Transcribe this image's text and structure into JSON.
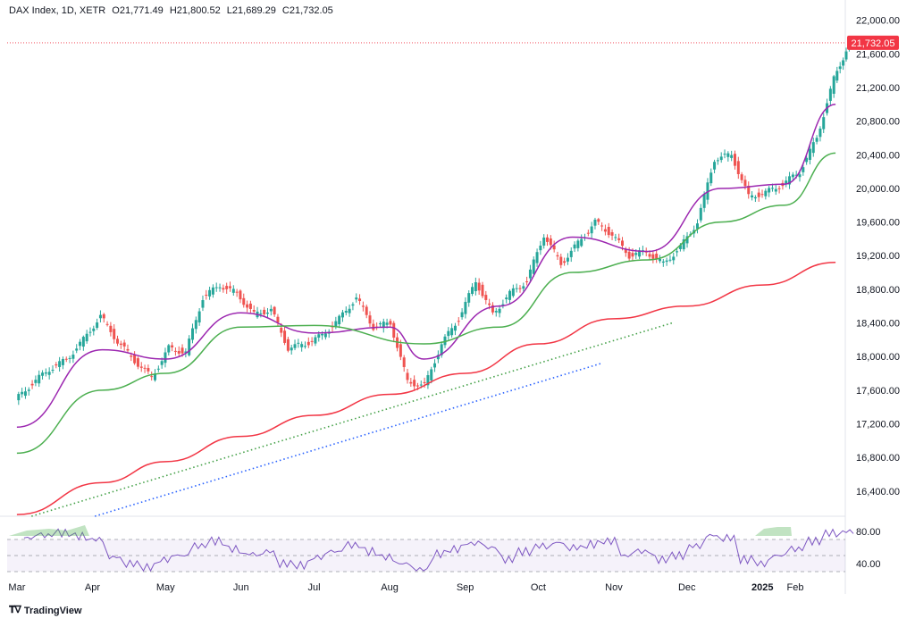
{
  "header": {
    "symbol": "DAX Index, 1D, XETR",
    "open": "O21,771.49",
    "high": "H21,800.52",
    "low": "L21,689.29",
    "close": "C21,732.05"
  },
  "brand": {
    "name": "TradingView",
    "logo": "tradingview-logo"
  },
  "colors": {
    "up": "#26a69a",
    "down": "#ef5350",
    "sma20": "#9c27b0",
    "sma50": "#4caf50",
    "sma200": "#f23645",
    "trend_green": "#43a047",
    "trend_blue": "#2962ff",
    "rsi_line": "#7e57c2",
    "rsi_fill": "rgba(126,87,194,0.08)",
    "price_line": "#f23645"
  },
  "chart_data": [
    {
      "type": "candlestick",
      "symbol": "DAX Index",
      "interval": "1D",
      "exchange": "XETR",
      "last_price_label": "21,732.05",
      "yticks": [
        "22,000.00",
        "21,600.00",
        "21,200.00",
        "20,800.00",
        "20,400.00",
        "20,000.00",
        "19,600.00",
        "19,200.00",
        "18,800.00",
        "18,400.00",
        "18,000.00",
        "17,600.00",
        "17,200.00",
        "16,800.00",
        "16,400.00"
      ],
      "ylim": [
        16100,
        22050
      ],
      "xticks": [
        "Mar",
        "Apr",
        "May",
        "Jun",
        "Jul",
        "Aug",
        "Sep",
        "Oct",
        "Nov",
        "Dec",
        "2025",
        "Feb"
      ],
      "ohlc_weekly_approx": [
        [
          "2024-03-01",
          17480,
          17720,
          17420,
          17680
        ],
        [
          "2024-03-08",
          17680,
          17900,
          17640,
          17850
        ],
        [
          "2024-03-15",
          17850,
          18000,
          17800,
          17960
        ],
        [
          "2024-03-22",
          17960,
          18250,
          17920,
          18200
        ],
        [
          "2024-03-29",
          18200,
          18550,
          18150,
          18480
        ],
        [
          "2024-04-05",
          18480,
          18520,
          18100,
          18180
        ],
        [
          "2024-04-12",
          18180,
          18200,
          17900,
          17950
        ],
        [
          "2024-04-19",
          17950,
          18000,
          17650,
          17750
        ],
        [
          "2024-04-26",
          17750,
          18150,
          17700,
          18100
        ],
        [
          "2024-05-03",
          18100,
          18200,
          17950,
          18050
        ],
        [
          "2024-05-10",
          18050,
          18750,
          18000,
          18700
        ],
        [
          "2024-05-17",
          18700,
          18900,
          18650,
          18850
        ],
        [
          "2024-05-24",
          18850,
          18900,
          18650,
          18750
        ],
        [
          "2024-05-31",
          18750,
          18800,
          18450,
          18500
        ],
        [
          "2024-06-07",
          18500,
          18700,
          18450,
          18560
        ],
        [
          "2024-06-14",
          18560,
          18600,
          18050,
          18100
        ],
        [
          "2024-06-21",
          18100,
          18250,
          17950,
          18150
        ],
        [
          "2024-06-28",
          18150,
          18300,
          18100,
          18250
        ],
        [
          "2024-07-05",
          18250,
          18500,
          18200,
          18450
        ],
        [
          "2024-07-12",
          18450,
          18800,
          18400,
          18700
        ],
        [
          "2024-07-19",
          18700,
          18750,
          18300,
          18350
        ],
        [
          "2024-07-26",
          18350,
          18450,
          18200,
          18400
        ],
        [
          "2024-08-02",
          18400,
          18450,
          17600,
          17700
        ],
        [
          "2024-08-09",
          17700,
          17800,
          17000,
          17650
        ],
        [
          "2024-08-16",
          17650,
          18200,
          17600,
          18150
        ],
        [
          "2024-08-23",
          18150,
          18500,
          18100,
          18450
        ],
        [
          "2024-08-30",
          18450,
          18950,
          18400,
          18900
        ],
        [
          "2024-09-06",
          18900,
          18950,
          18450,
          18500
        ],
        [
          "2024-09-13",
          18500,
          18800,
          18200,
          18750
        ],
        [
          "2024-09-20",
          18750,
          19050,
          18700,
          18900
        ],
        [
          "2024-09-27",
          18900,
          19500,
          18850,
          19450
        ],
        [
          "2024-10-04",
          19450,
          19500,
          19050,
          19100
        ],
        [
          "2024-10-11",
          19100,
          19400,
          19050,
          19350
        ],
        [
          "2024-10-18",
          19350,
          19650,
          19300,
          19600
        ],
        [
          "2024-10-25",
          19600,
          19650,
          19350,
          19450
        ],
        [
          "2024-11-01",
          19450,
          19500,
          19050,
          19200
        ],
        [
          "2024-11-08",
          19200,
          19400,
          19000,
          19250
        ],
        [
          "2024-11-15",
          19250,
          19300,
          18850,
          19100
        ],
        [
          "2024-11-22",
          19100,
          19350,
          18800,
          19300
        ],
        [
          "2024-11-29",
          19300,
          19650,
          19250,
          19600
        ],
        [
          "2024-12-06",
          19600,
          20400,
          19550,
          20350
        ],
        [
          "2024-12-13",
          20350,
          20500,
          20250,
          20400
        ],
        [
          "2024-12-20",
          20400,
          20450,
          19800,
          19900
        ],
        [
          "2024-12-27",
          19900,
          20050,
          19700,
          19950
        ],
        [
          "2025-01-03",
          19950,
          20100,
          19800,
          20050
        ],
        [
          "2025-01-10",
          20050,
          20300,
          19950,
          20200
        ],
        [
          "2025-01-17",
          20200,
          20650,
          20150,
          20600
        ],
        [
          "2025-01-24",
          20600,
          21350,
          20550,
          21300
        ],
        [
          "2025-01-31",
          21300,
          21800,
          21250,
          21732
        ]
      ],
      "moving_averages": [
        {
          "name": "",
          "color_key": "sma20",
          "points": [
            [
              "2024-03-01",
              17160
            ],
            [
              "2024-04-05",
              18080
            ],
            [
              "2024-05-01",
              17970
            ],
            [
              "2024-06-01",
              18520
            ],
            [
              "2024-07-01",
              18280
            ],
            [
              "2024-08-01",
              18350
            ],
            [
              "2024-08-15",
              17970
            ],
            [
              "2024-09-15",
              18600
            ],
            [
              "2024-10-15",
              19420
            ],
            [
              "2024-11-15",
              19250
            ],
            [
              "2024-12-15",
              20000
            ],
            [
              "2025-01-10",
              20050
            ],
            [
              "2025-01-31",
              21000
            ]
          ]
        },
        {
          "name": "",
          "color_key": "sma50",
          "points": [
            [
              "2024-03-01",
              16850
            ],
            [
              "2024-04-05",
              17600
            ],
            [
              "2024-05-01",
              17800
            ],
            [
              "2024-06-01",
              18350
            ],
            [
              "2024-07-01",
              18370
            ],
            [
              "2024-08-15",
              18150
            ],
            [
              "2024-09-15",
              18350
            ],
            [
              "2024-10-15",
              19000
            ],
            [
              "2024-11-15",
              19150
            ],
            [
              "2024-12-15",
              19600
            ],
            [
              "2025-01-10",
              19800
            ],
            [
              "2025-01-31",
              20420
            ]
          ]
        },
        {
          "name": "",
          "color_key": "sma200",
          "points": [
            [
              "2024-03-01",
              16120
            ],
            [
              "2024-04-05",
              16500
            ],
            [
              "2024-05-01",
              16750
            ],
            [
              "2024-06-01",
              17050
            ],
            [
              "2024-07-01",
              17300
            ],
            [
              "2024-08-01",
              17550
            ],
            [
              "2024-09-01",
              17800
            ],
            [
              "2024-10-01",
              18150
            ],
            [
              "2024-11-01",
              18450
            ],
            [
              "2024-12-01",
              18600
            ],
            [
              "2025-01-01",
              18850
            ],
            [
              "2025-01-31",
              19120
            ]
          ]
        }
      ],
      "trendlines": [
        {
          "color_key": "trend_green",
          "style": "dotted",
          "from": [
            "2024-03-07",
            16100
          ],
          "to": [
            "2024-11-25",
            18400
          ]
        },
        {
          "color_key": "trend_blue",
          "style": "dotted",
          "from": [
            "2024-04-02",
            16100
          ],
          "to": [
            "2024-10-27",
            17920
          ]
        }
      ]
    },
    {
      "type": "line",
      "name": "",
      "yticks": [
        "80.00",
        "40.00"
      ],
      "ylim": [
        30,
        90
      ],
      "bands": [
        70,
        50,
        30
      ],
      "values_approx": [
        72,
        75,
        78,
        74,
        70,
        48,
        40,
        35,
        45,
        50,
        62,
        68,
        58,
        52,
        55,
        40,
        38,
        48,
        55,
        63,
        55,
        48,
        40,
        32,
        52,
        58,
        65,
        60,
        45,
        55,
        62,
        66,
        60,
        64,
        68,
        50,
        55,
        45,
        50,
        62,
        75,
        72,
        45,
        40,
        50,
        58,
        68,
        78,
        80
      ]
    }
  ]
}
